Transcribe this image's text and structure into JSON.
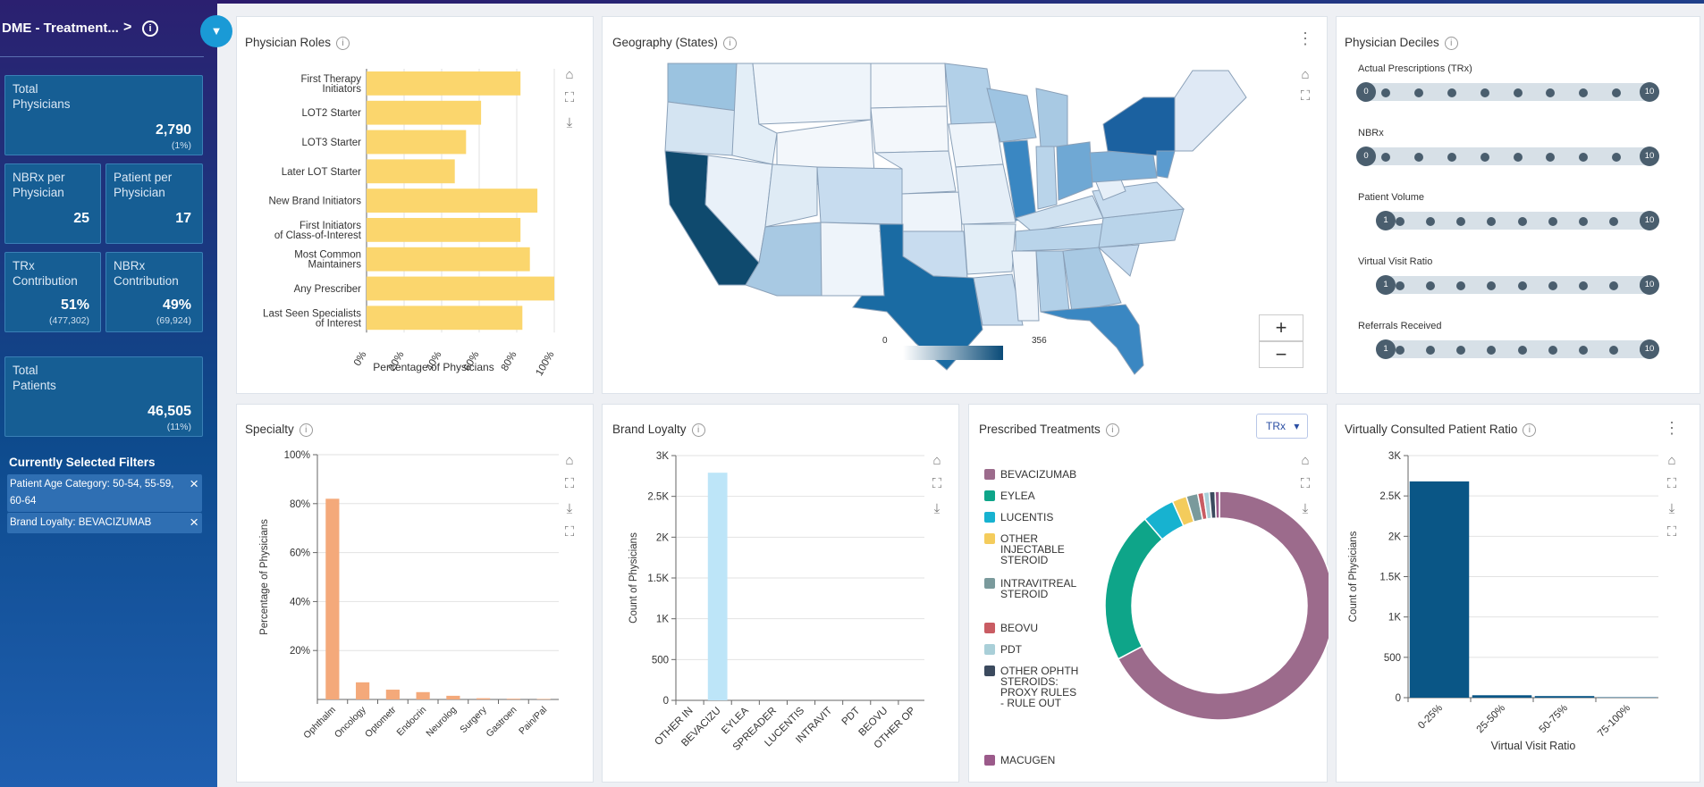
{
  "sidebar": {
    "title": "DME - Treatment...",
    "chevron": ">",
    "info_icon": "i",
    "kpis": {
      "total_physicians": {
        "label": "Total\nPhysicians",
        "value": "2,790",
        "sub": "(1%)"
      },
      "nbrx_per_phys": {
        "label": "NBRx per\nPhysician",
        "value": "25"
      },
      "patient_per_phys": {
        "label": "Patient per\nPhysician",
        "value": "17"
      },
      "trx_contrib": {
        "label": "TRx\nContribution",
        "value": "51%",
        "sub": "(477,302)"
      },
      "nbrx_contrib": {
        "label": "NBRx\nContribution",
        "value": "49%",
        "sub": "(69,924)"
      },
      "total_patients": {
        "label": "Total\nPatients",
        "value": "46,505",
        "sub": "(11%)"
      }
    },
    "filters_title": "Currently Selected Filters",
    "filters": [
      "Patient Age Category: 50-54, 55-59, 60-64",
      "Brand Loyalty: BEVACIZUMAB"
    ]
  },
  "cards": {
    "roles": "Physician Roles",
    "geo": "Geography (States)",
    "deciles": "Physician Deciles",
    "specialty": "Specialty",
    "loyalty": "Brand Loyalty",
    "treat": "Prescribed Treatments",
    "virtual": "Virtually Consulted Patient Ratio"
  },
  "colors": {
    "yellow": "#fbd66d",
    "orange": "#f4a97a",
    "lightblue": "#bde5f8",
    "navy": "#0a5686"
  },
  "roles_chart": {
    "type": "bar",
    "categories": [
      "First Therapy\nInitiators",
      "LOT2 Starter",
      "LOT3 Starter",
      "Later LOT Starter",
      "New Brand Initiators",
      "First Initiators\nof Class-of-Interest",
      "Most Common\nMaintainers",
      "Any Prescriber",
      "Last Seen Specialists\nof Interest"
    ],
    "values": [
      82,
      61,
      53,
      47,
      91,
      82,
      87,
      100,
      83
    ],
    "xlabel": "Percentage of Physicians",
    "xticks": [
      "0%",
      "20%",
      "40%",
      "60%",
      "80%",
      "100%"
    ],
    "xlim": [
      0,
      100
    ]
  },
  "geo_map": {
    "legend_min": "0",
    "legend_max": "356"
  },
  "deciles": [
    {
      "label": "Actual Prescriptions (TRx)",
      "min": "0",
      "max": "10"
    },
    {
      "label": "NBRx",
      "min": "0",
      "max": "10"
    },
    {
      "label": "Patient Volume",
      "min": "1",
      "max": "10"
    },
    {
      "label": "Virtual Visit Ratio",
      "min": "1",
      "max": "10"
    },
    {
      "label": "Referrals Received",
      "min": "1",
      "max": "10"
    }
  ],
  "specialty_chart": {
    "type": "bar",
    "categories": [
      "Ophthalm",
      "Oncology",
      "Optometr",
      "Endocrin",
      "Neurolog",
      "Surgery",
      "Gastroen",
      "Pain/Pal"
    ],
    "values": [
      82,
      7,
      4,
      3,
      1.5,
      0.5,
      0.3,
      0.2
    ],
    "ylabel": "Percentage of Physicians",
    "yticks": [
      "20%",
      "40%",
      "60%",
      "80%",
      "100%"
    ],
    "ylim": [
      0,
      100
    ]
  },
  "loyalty_chart": {
    "type": "bar",
    "categories": [
      "OTHER IN",
      "BEVACIZU",
      "EYLEA",
      "SPREADER",
      "LUCENTIS",
      "INTRAVIT",
      "PDT",
      "BEOVU",
      "OTHER OP"
    ],
    "values": [
      0,
      2790,
      0,
      0,
      0,
      0,
      0,
      0,
      0
    ],
    "ylabel": "Count of Physicians",
    "yticks": [
      "0",
      "500",
      "1K",
      "1.5K",
      "2K",
      "2.5K",
      "3K"
    ],
    "ylim": [
      0,
      3000
    ]
  },
  "treat_chart": {
    "type": "pie",
    "dropdown": "TRx",
    "legend": [
      {
        "name": "BEVACIZUMAB",
        "color": "#9c6b8c"
      },
      {
        "name": "EYLEA",
        "color": "#0ea589"
      },
      {
        "name": "LUCENTIS",
        "color": "#17b2d0"
      },
      {
        "name": "OTHER INJECTABLE STEROID",
        "color": "#f4cc5c"
      },
      {
        "name": "INTRAVITREAL STEROID",
        "color": "#7a9a9c"
      },
      {
        "name": "BEOVU",
        "color": "#c95c63"
      },
      {
        "name": "PDT",
        "color": "#a9cfd8"
      },
      {
        "name": "OTHER OPHTH STEROIDS: PROXY RULES - RULE OUT",
        "color": "#3b4a5e"
      },
      {
        "name": "MACUGEN",
        "color": "#9b5a8a"
      }
    ],
    "values": [
      66,
      21,
      4.5,
      2,
      1.6,
      0.8,
      0.8,
      0.8,
      0.6
    ]
  },
  "virtual_chart": {
    "type": "bar",
    "categories": [
      "0-25%",
      "25-50%",
      "50-75%",
      "75-100%"
    ],
    "values": [
      2680,
      30,
      20,
      5
    ],
    "xlabel": "Virtual Visit Ratio",
    "ylabel": "Count of Physicians",
    "yticks": [
      "0",
      "500",
      "1K",
      "1.5K",
      "2K",
      "2.5K",
      "3K"
    ],
    "ylim": [
      0,
      3000
    ]
  },
  "toolbar": {
    "home": "⌂",
    "expand": "⛶",
    "download": "⤓",
    "menu": "⋮",
    "zoom_in": "+",
    "zoom_out": "−",
    "close": "×",
    "filter": "▼",
    "dropdown_caret": "▾"
  }
}
